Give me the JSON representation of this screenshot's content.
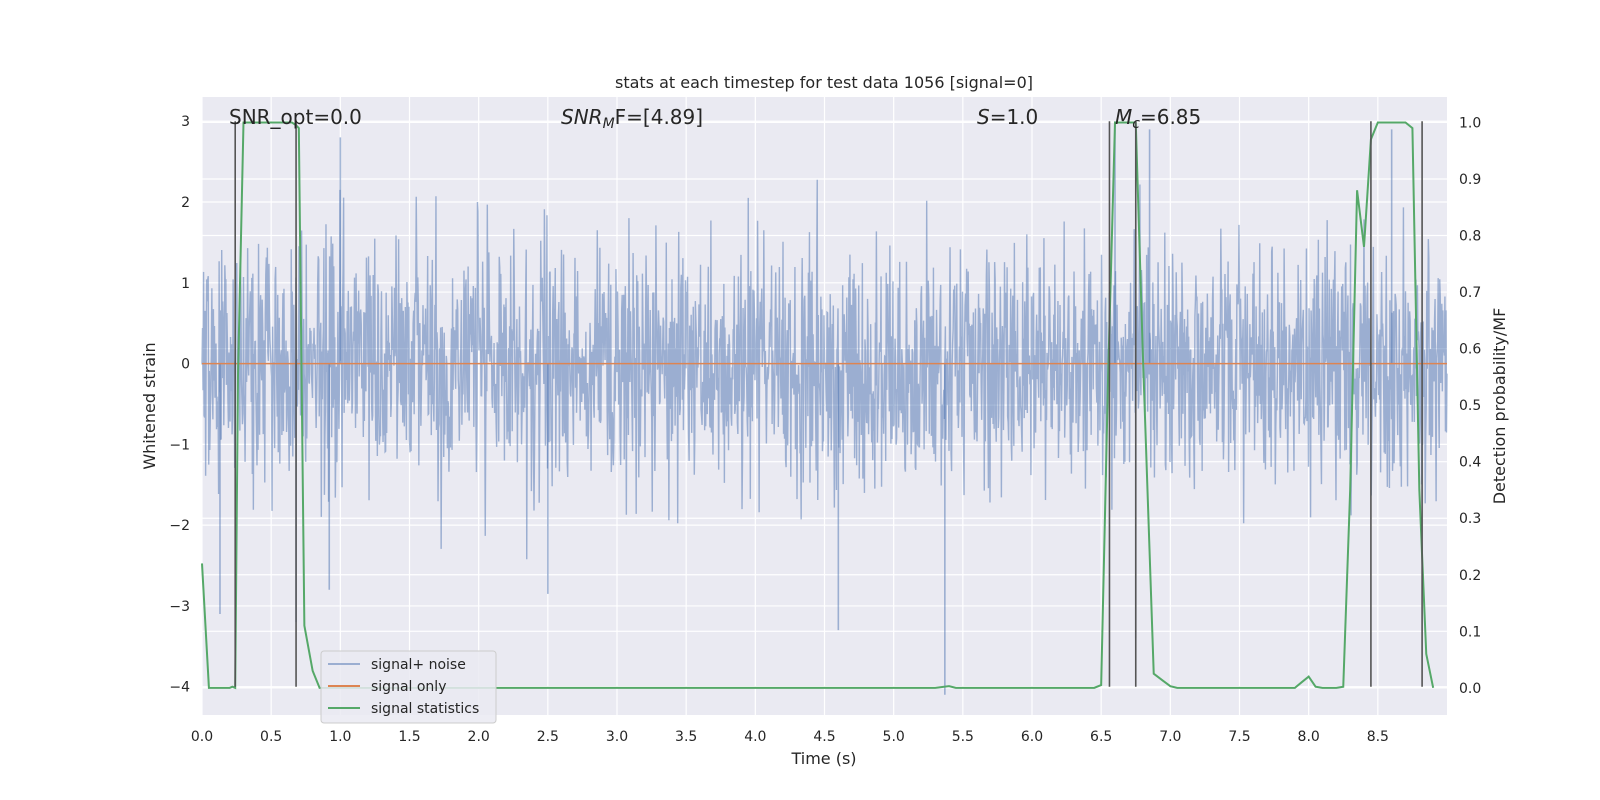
{
  "chart_data": {
    "type": "line",
    "title": "stats at each timestep for test data 1056 [signal=0]",
    "xlabel": "Time (s)",
    "ylabel_left": "Whitened strain",
    "ylabel_right": "Detection probability/MF",
    "xlim": [
      0.0,
      9.0
    ],
    "ylim_left": [
      -4.35,
      3.3
    ],
    "ylim_right": [
      -0.048,
      1.045
    ],
    "x_ticks": [
      "0.0",
      "0.5",
      "1.0",
      "1.5",
      "2.0",
      "2.5",
      "3.0",
      "3.5",
      "4.0",
      "4.5",
      "5.0",
      "5.5",
      "6.0",
      "6.5",
      "7.0",
      "7.5",
      "8.0",
      "8.5"
    ],
    "y_ticks_left": [
      "3",
      "2",
      "1",
      "0",
      "−1",
      "−2",
      "−3",
      "−4"
    ],
    "y_ticks_right": [
      "1.0",
      "0.9",
      "0.8",
      "0.7",
      "0.6",
      "0.5",
      "0.4",
      "0.3",
      "0.2",
      "0.1",
      "0.0"
    ],
    "grid": true,
    "legend_position": "lower-left",
    "annotations": {
      "snr_opt": "SNR_opt=0.0",
      "snr_mf_main": "SNR",
      "snr_mf_sub": "M",
      "snr_mf_tail": "F=[4.89]",
      "s_main": "S",
      "s_tail": "=1.0",
      "mc_main": "M",
      "mc_sub": "c",
      "mc_tail": "=6.85"
    },
    "series": [
      {
        "name": "signal+ noise",
        "axis": "left",
        "color": "#4c72b0",
        "opacity": 0.5,
        "style": "noise",
        "amplitude_typical": 1.7,
        "notable_extremes": [
          {
            "x": 0.13,
            "y": -3.1
          },
          {
            "x": 0.68,
            "y": -3.2
          },
          {
            "x": 0.92,
            "y": -2.8
          },
          {
            "x": 2.5,
            "y": -2.85
          },
          {
            "x": 4.6,
            "y": -3.3
          },
          {
            "x": 5.37,
            "y": -4.1
          },
          {
            "x": 6.75,
            "y": -3.4
          },
          {
            "x": 1.0,
            "y": 2.8
          },
          {
            "x": 6.6,
            "y": 3.0
          },
          {
            "x": 6.85,
            "y": 2.9
          },
          {
            "x": 8.6,
            "y": 2.9
          }
        ]
      },
      {
        "name": "signal only",
        "axis": "left",
        "color": "#dd8452",
        "x": [
          0.0,
          9.0
        ],
        "y": [
          0.0,
          0.0
        ]
      },
      {
        "name": "signal statistics",
        "axis": "right",
        "color": "#55a868",
        "x": [
          0.0,
          0.05,
          0.1,
          0.15,
          0.2,
          0.22,
          0.24,
          0.26,
          0.3,
          0.35,
          0.4,
          0.5,
          0.6,
          0.65,
          0.68,
          0.7,
          0.74,
          0.8,
          0.85,
          0.9,
          1.0,
          2.0,
          3.0,
          4.0,
          5.0,
          5.3,
          5.4,
          5.45,
          5.5,
          6.0,
          6.45,
          6.5,
          6.55,
          6.6,
          6.65,
          6.7,
          6.75,
          6.8,
          6.88,
          6.95,
          7.0,
          7.05,
          7.1,
          7.5,
          7.9,
          7.95,
          8.0,
          8.05,
          8.1,
          8.2,
          8.25,
          8.3,
          8.35,
          8.4,
          8.45,
          8.5,
          8.55,
          8.6,
          8.7,
          8.75,
          8.8,
          8.85,
          8.9
        ],
        "y": [
          0.22,
          0.0,
          0.0,
          0.0,
          0.0,
          0.002,
          0.0,
          0.55,
          1.0,
          1.0,
          1.0,
          1.0,
          1.0,
          1.0,
          0.995,
          0.99,
          0.11,
          0.03,
          0.0,
          0.0,
          0.0,
          0.0,
          0.0,
          0.0,
          0.0,
          0.0,
          0.003,
          0.0,
          0.0,
          0.0,
          0.0,
          0.005,
          0.55,
          1.0,
          1.0,
          1.0,
          1.0,
          0.6,
          0.025,
          0.012,
          0.003,
          0.0,
          0.0,
          0.0,
          0.0,
          0.01,
          0.02,
          0.002,
          0.0,
          0.0,
          0.002,
          0.35,
          0.88,
          0.78,
          0.97,
          1.0,
          1.0,
          1.0,
          1.0,
          0.99,
          0.35,
          0.06,
          0.0
        ]
      }
    ],
    "marker_lines": [
      {
        "x": 0.24,
        "from": -4.0,
        "to": 3.0
      },
      {
        "x": 0.68,
        "from": -4.0,
        "to": 3.0
      },
      {
        "x": 6.56,
        "from": -4.0,
        "to": 3.0
      },
      {
        "x": 6.75,
        "from": -4.0,
        "to": 3.0
      },
      {
        "x": 8.45,
        "from": -4.0,
        "to": 3.0
      },
      {
        "x": 8.82,
        "from": -4.0,
        "to": 3.0
      }
    ],
    "marker_color": "#555555"
  }
}
